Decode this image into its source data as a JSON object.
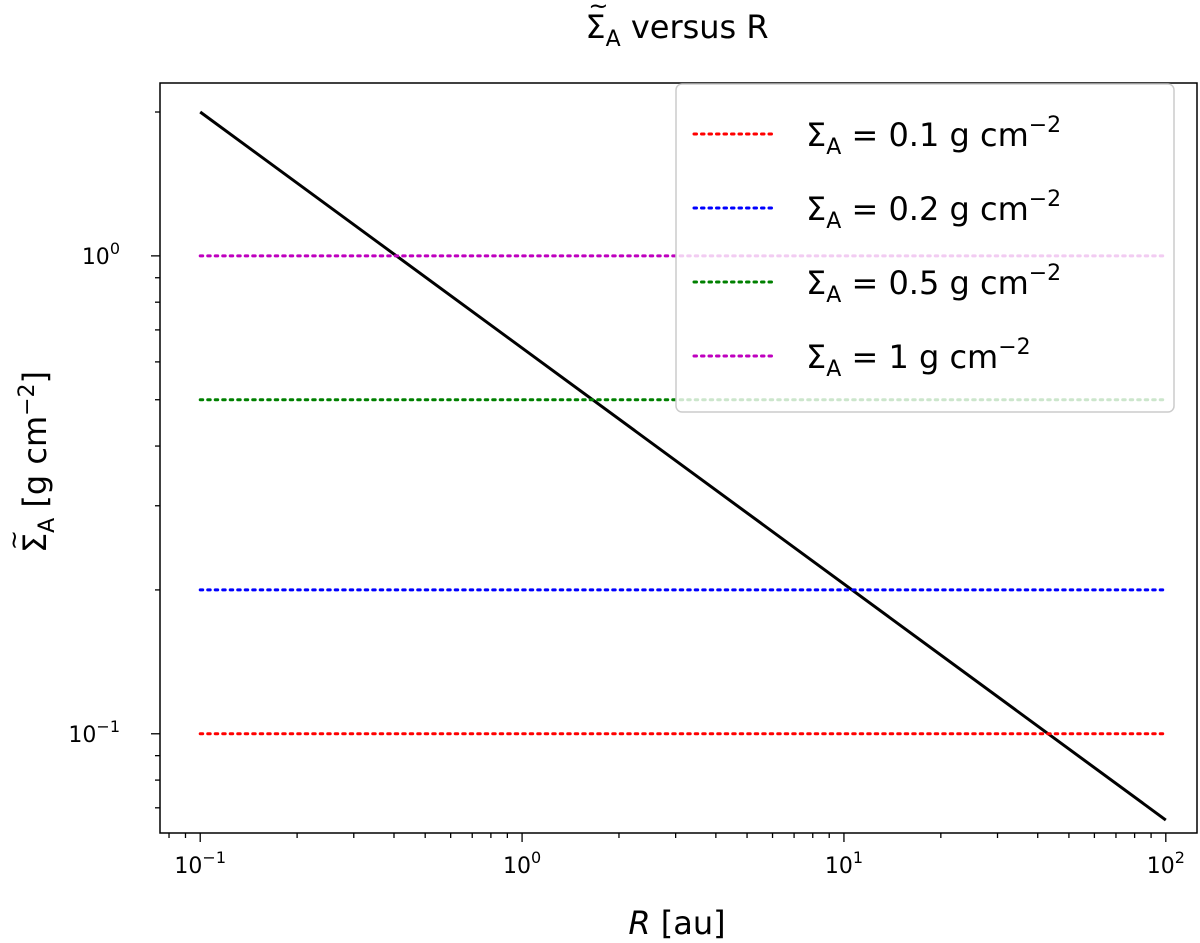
{
  "chart_data": {
    "type": "line",
    "title": {
      "base": "Σ",
      "accent": "~",
      "sub": "A",
      "rest": " versus R"
    },
    "xlabel": {
      "var": "R",
      "rest": " [au]"
    },
    "ylabel": {
      "base": "Σ",
      "accent": "~",
      "sub": "A",
      "unit_pre": " [g cm",
      "unit_exp": "−2",
      "unit_post": "]"
    },
    "x_scale": "log",
    "y_scale": "log",
    "xlim": [
      0.075,
      125
    ],
    "ylim": [
      0.062,
      2.3
    ],
    "x_ticks": [
      {
        "value": 0.1,
        "base": "10",
        "exp": "−1"
      },
      {
        "value": 1,
        "base": "10",
        "exp": "0"
      },
      {
        "value": 10,
        "base": "10",
        "exp": "1"
      },
      {
        "value": 100,
        "base": "10",
        "exp": "2"
      }
    ],
    "y_ticks": [
      {
        "value": 0.1,
        "base": "10",
        "exp": "−1"
      },
      {
        "value": 1,
        "base": "10",
        "exp": "0"
      }
    ],
    "grid": false,
    "legend_position": "top-right",
    "series": [
      {
        "kind": "curve",
        "color": "#000000",
        "style": "solid",
        "x": [
          0.1,
          100
        ],
        "y": [
          2.0,
          0.066
        ]
      },
      {
        "name": "0.1 g cm",
        "color": "#ff0000",
        "style": "dotted",
        "x": [
          0.1,
          100
        ],
        "y": [
          0.1,
          0.1
        ],
        "legend": {
          "pre": "Σ",
          "sub": "A",
          "eq": " = 0.1 g cm",
          "exp": "−2"
        }
      },
      {
        "name": "0.2 g cm",
        "color": "#0000ff",
        "style": "dotted",
        "x": [
          0.1,
          100
        ],
        "y": [
          0.2,
          0.2
        ],
        "legend": {
          "pre": "Σ",
          "sub": "A",
          "eq": " = 0.2 g cm",
          "exp": "−2"
        }
      },
      {
        "name": "0.5 g cm",
        "color": "#008000",
        "style": "dotted",
        "x": [
          0.1,
          100
        ],
        "y": [
          0.5,
          0.5
        ],
        "legend": {
          "pre": "Σ",
          "sub": "A",
          "eq": " = 0.5 g cm",
          "exp": "−2"
        }
      },
      {
        "name": "1 g cm",
        "color": "#bf00bf",
        "style": "dotted",
        "x": [
          0.1,
          100
        ],
        "y": [
          1,
          1
        ],
        "legend": {
          "pre": "Σ",
          "sub": "A",
          "eq": " = 1 g cm",
          "exp": "−2"
        }
      }
    ]
  }
}
